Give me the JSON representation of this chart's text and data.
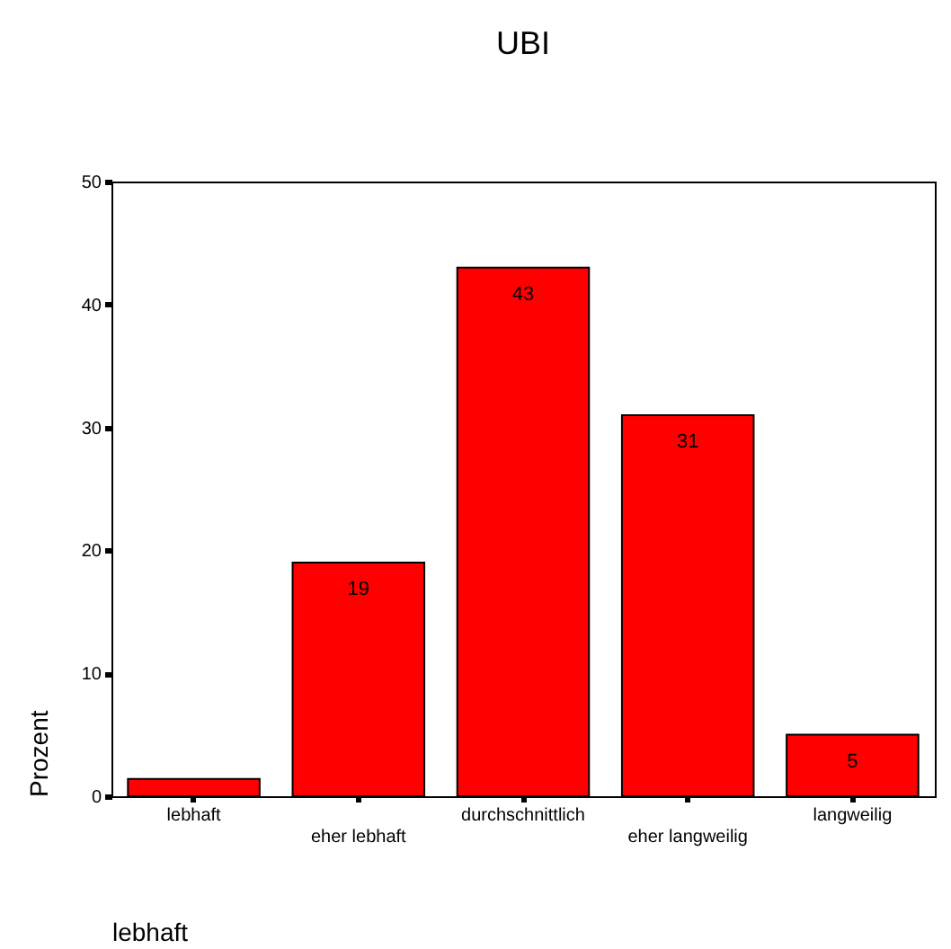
{
  "chart_data": {
    "type": "bar",
    "title": "UBI",
    "xlabel": "lebhaft",
    "ylabel": "Prozent",
    "categories": [
      "lebhaft",
      "eher lebhaft",
      "durchschnittlich",
      "eher langweilig",
      "langweilig"
    ],
    "values": [
      1.4,
      19,
      43,
      31,
      5
    ],
    "value_labels": [
      null,
      "19",
      "43",
      "31",
      "5"
    ],
    "color": "#ff0000",
    "ylim": [
      0,
      50
    ],
    "yticks": [
      0,
      10,
      20,
      30,
      40,
      50
    ],
    "grid": false
  }
}
